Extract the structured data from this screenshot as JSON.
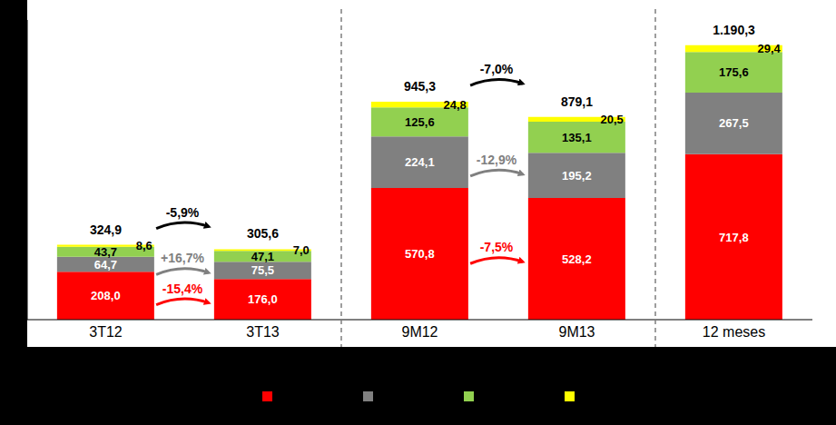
{
  "chart_data": {
    "type": "bar",
    "stacked": true,
    "data_labels": true,
    "tick_labels": false,
    "grid": false,
    "legend": "bottom",
    "categories": [
      "3T12",
      "3T13",
      "9M12",
      "9M13",
      "12 meses"
    ],
    "ylim": [
      0,
      1300
    ],
    "series": [
      {
        "color": "#ff0000",
        "values": [
          208.0,
          176.0,
          570.8,
          528.2,
          717.8
        ],
        "value_labels": [
          "208,0",
          "176,0",
          "570,8",
          "528,2",
          "717,8"
        ],
        "changes": [
          {
            "from": "3T12",
            "to": "3T13",
            "label": "-15,4%"
          },
          {
            "from": "9M12",
            "to": "9M13",
            "label": "-7,5%"
          }
        ]
      },
      {
        "color": "#808080",
        "values": [
          64.7,
          75.5,
          224.1,
          195.2,
          267.5
        ],
        "value_labels": [
          "64,7",
          "75,5",
          "224,1",
          "195,2",
          "267,5"
        ],
        "changes": [
          {
            "from": "3T12",
            "to": "3T13",
            "label": "+16,7%"
          },
          {
            "from": "9M12",
            "to": "9M13",
            "label": "-12,9%"
          }
        ]
      },
      {
        "color": "#92d050",
        "values": [
          43.7,
          47.1,
          125.6,
          135.1,
          175.6
        ],
        "value_labels": [
          "43,7",
          "47,1",
          "125,6",
          "135,1",
          "175,6"
        ]
      },
      {
        "color": "#ffff00",
        "values": [
          8.6,
          7.0,
          24.8,
          20.5,
          29.4
        ],
        "value_labels": [
          "8,6",
          "7,0",
          "24,8",
          "20,5",
          "29,4"
        ]
      }
    ],
    "totals": [
      324.9,
      305.6,
      945.3,
      879.1,
      1190.3
    ],
    "total_labels": [
      "324,9",
      "305,6",
      "945,3",
      "879,1",
      "1.190,3"
    ],
    "total_changes": [
      {
        "from": "3T12",
        "to": "3T13",
        "label": "-5,9%"
      },
      {
        "from": "9M12",
        "to": "9M13",
        "label": "-7,0%"
      }
    ]
  }
}
